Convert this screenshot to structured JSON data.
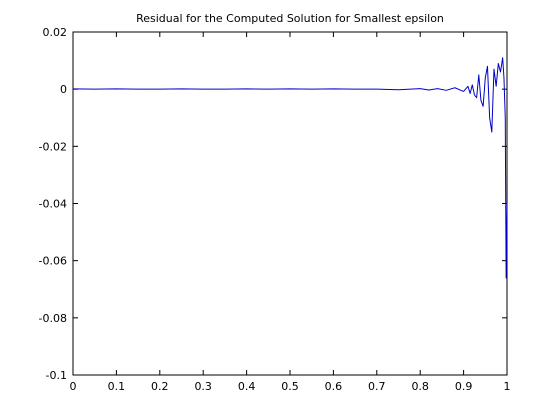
{
  "chart_data": {
    "type": "line",
    "title": "Residual for the Computed Solution for Smallest epsilon",
    "xlabel": "",
    "ylabel": "",
    "xlim": [
      0,
      1
    ],
    "ylim": [
      -0.1,
      0.02
    ],
    "xticks": [
      "0",
      "0.1",
      "0.2",
      "0.3",
      "0.4",
      "0.5",
      "0.6",
      "0.7",
      "0.8",
      "0.9",
      "1"
    ],
    "yticks": [
      "0.02",
      "0",
      "-0.02",
      "-0.04",
      "-0.06",
      "-0.08",
      "-0.1"
    ],
    "xtick_values": [
      0,
      0.1,
      0.2,
      0.3,
      0.4,
      0.5,
      0.6,
      0.7,
      0.8,
      0.9,
      1
    ],
    "ytick_values": [
      0.02,
      0,
      -0.02,
      -0.04,
      -0.06,
      -0.08,
      -0.1
    ],
    "grid": false,
    "legend": "none",
    "series": [
      {
        "color": "#0000cc",
        "x": [
          0.0,
          0.05,
          0.1,
          0.15,
          0.2,
          0.25,
          0.3,
          0.35,
          0.4,
          0.45,
          0.5,
          0.55,
          0.6,
          0.65,
          0.7,
          0.75,
          0.8,
          0.82,
          0.84,
          0.86,
          0.88,
          0.9,
          0.91,
          0.915,
          0.92,
          0.925,
          0.93,
          0.935,
          0.94,
          0.945,
          0.95,
          0.955,
          0.96,
          0.965,
          0.97,
          0.975,
          0.98,
          0.985,
          0.99,
          0.993,
          0.996,
          0.998,
          1.0
        ],
        "y": [
          0.0001,
          0.0,
          0.0001,
          0.0,
          0.0,
          0.0001,
          0.0,
          0.0,
          0.0001,
          0.0,
          0.0001,
          0.0,
          0.0001,
          0.0,
          0.0,
          -0.0002,
          0.0002,
          -0.0003,
          0.0002,
          -0.0004,
          0.0005,
          -0.0008,
          0.001,
          -0.0015,
          0.0015,
          -0.002,
          -0.003,
          0.005,
          -0.004,
          -0.006,
          0.004,
          0.008,
          -0.01,
          -0.015,
          0.007,
          0.001,
          0.009,
          0.006,
          0.011,
          0.004,
          -0.01,
          -0.066,
          -0.04
        ]
      }
    ]
  }
}
